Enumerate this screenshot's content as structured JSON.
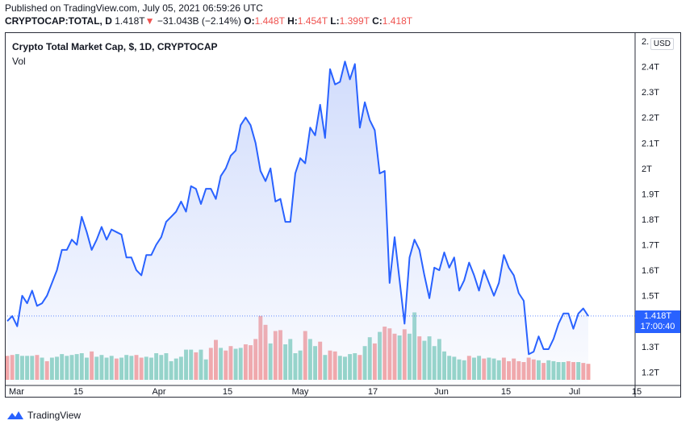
{
  "header": {
    "published": "Published on TradingView.com, July 05, 2021 06:59:26 UTC",
    "symbol": "CRYPTOCAP:TOTAL, D",
    "last": "1.418T",
    "change_arrow": "▼",
    "change": "−31.043B (−2.14%)",
    "o_label": "O:",
    "o_value": "1.448T",
    "h_label": "H:",
    "h_value": "1.454T",
    "l_label": "L:",
    "l_value": "1.399T",
    "c_label": "C:",
    "c_value": "1.418T"
  },
  "legend": {
    "title": "Crypto Total Market Cap, $, 1D, CRYPTOCAP",
    "vol": "Vol"
  },
  "currency_button": "USD",
  "last_price_tag": {
    "price": "1.418T",
    "countdown": "17:00:40"
  },
  "footer": {
    "brand": "TradingView",
    "logo_icon": "tradingview-logo-icon"
  },
  "colors": {
    "line": "#2962ff",
    "area_top": "#c9d6fb",
    "vol_up": "#8fd3c4",
    "vol_down": "#f4a3a3",
    "tag": "#2962ff",
    "down_text": "#ef5350"
  },
  "chart_data": {
    "type": "area",
    "title": "Crypto Total Market Cap, $, 1D, CRYPTOCAP",
    "y_unit": "T (trillion USD)",
    "y_ticks": [
      "1.2T",
      "1.3T",
      "1.5T",
      "1.6T",
      "1.7T",
      "1.8T",
      "1.9T",
      "2T",
      "2.1T",
      "2.2T",
      "2.3T",
      "2.4T",
      "2."
    ],
    "x_ticks": [
      "Mar",
      "15",
      "Apr",
      "15",
      "May",
      "17",
      "Jun",
      "15",
      "Jul",
      "15"
    ],
    "ylim": [
      1.16,
      2.5
    ],
    "grid": false,
    "series": [
      {
        "values": [
          1.4,
          1.42,
          1.38,
          1.5,
          1.47,
          1.52,
          1.46,
          1.47,
          1.5,
          1.55,
          1.6,
          1.68,
          1.68,
          1.72,
          1.7,
          1.81,
          1.75,
          1.68,
          1.72,
          1.77,
          1.72,
          1.76,
          1.75,
          1.74,
          1.65,
          1.65,
          1.6,
          1.58,
          1.66,
          1.66,
          1.7,
          1.73,
          1.79,
          1.81,
          1.83,
          1.87,
          1.83,
          1.93,
          1.92,
          1.86,
          1.92,
          1.92,
          1.88,
          1.97,
          2.0,
          2.05,
          2.07,
          2.17,
          2.2,
          2.17,
          2.1,
          1.99,
          1.95,
          2.0,
          1.87,
          1.88,
          1.79,
          1.79,
          1.98,
          2.04,
          2.02,
          2.16,
          2.13,
          2.25,
          2.12,
          2.39,
          2.33,
          2.34,
          2.42,
          2.35,
          2.41,
          2.16,
          2.26,
          2.19,
          2.15,
          1.98,
          1.99,
          1.55,
          1.73,
          1.56,
          1.39,
          1.65,
          1.72,
          1.68,
          1.58,
          1.49,
          1.61,
          1.6,
          1.67,
          1.61,
          1.65,
          1.52,
          1.56,
          1.63,
          1.58,
          1.52,
          1.6,
          1.55,
          1.5,
          1.55,
          1.66,
          1.61,
          1.58,
          1.51,
          1.48,
          1.27,
          1.28,
          1.34,
          1.29,
          1.29,
          1.33,
          1.39,
          1.43,
          1.43,
          1.37,
          1.43,
          1.45,
          1.42
        ]
      }
    ],
    "volume": {
      "direction": [
        "d",
        "d",
        "u",
        "u",
        "u",
        "u",
        "d",
        "u",
        "d",
        "u",
        "u",
        "u",
        "u",
        "u",
        "u",
        "u",
        "u",
        "d",
        "u",
        "u",
        "u",
        "u",
        "d",
        "u",
        "u",
        "u",
        "d",
        "d",
        "u",
        "u",
        "u",
        "u",
        "u",
        "u",
        "u",
        "u",
        "u",
        "u",
        "d",
        "u",
        "u",
        "d",
        "d",
        "u",
        "d",
        "d",
        "u",
        "u",
        "d",
        "d",
        "d",
        "d",
        "d",
        "u",
        "d",
        "d",
        "u",
        "u",
        "u",
        "u",
        "d",
        "u",
        "u",
        "d",
        "u",
        "d",
        "d",
        "u",
        "u",
        "u",
        "u",
        "d",
        "u",
        "u",
        "d",
        "u",
        "d",
        "d",
        "d",
        "u",
        "d",
        "u",
        "u",
        "d",
        "u",
        "u",
        "u",
        "u",
        "u",
        "u",
        "u",
        "u",
        "u",
        "d",
        "u",
        "u",
        "d",
        "u",
        "u",
        "u",
        "d",
        "d",
        "d",
        "d",
        "d",
        "d",
        "d",
        "u",
        "d",
        "u",
        "u",
        "u",
        "u",
        "d",
        "d",
        "u",
        "d",
        "d"
      ],
      "values": [
        0.27,
        0.28,
        0.29,
        0.27,
        0.27,
        0.27,
        0.28,
        0.25,
        0.21,
        0.25,
        0.26,
        0.29,
        0.27,
        0.28,
        0.29,
        0.3,
        0.25,
        0.32,
        0.26,
        0.28,
        0.25,
        0.27,
        0.24,
        0.25,
        0.28,
        0.27,
        0.28,
        0.25,
        0.26,
        0.25,
        0.3,
        0.28,
        0.3,
        0.21,
        0.24,
        0.26,
        0.34,
        0.34,
        0.31,
        0.34,
        0.23,
        0.36,
        0.45,
        0.36,
        0.33,
        0.38,
        0.35,
        0.36,
        0.4,
        0.39,
        0.46,
        0.72,
        0.62,
        0.41,
        0.55,
        0.56,
        0.4,
        0.46,
        0.3,
        0.33,
        0.55,
        0.46,
        0.38,
        0.43,
        0.28,
        0.33,
        0.32,
        0.27,
        0.26,
        0.29,
        0.3,
        0.28,
        0.38,
        0.48,
        0.41,
        0.54,
        0.6,
        0.58,
        0.52,
        0.5,
        0.57,
        0.52,
        0.76,
        0.49,
        0.44,
        0.49,
        0.38,
        0.46,
        0.32,
        0.27,
        0.26,
        0.23,
        0.22,
        0.27,
        0.25,
        0.27,
        0.24,
        0.25,
        0.24,
        0.22,
        0.25,
        0.21,
        0.24,
        0.21,
        0.2,
        0.25,
        0.23,
        0.22,
        0.19,
        0.22,
        0.21,
        0.2,
        0.2,
        0.21,
        0.2,
        0.2,
        0.19,
        0.18
      ]
    }
  }
}
